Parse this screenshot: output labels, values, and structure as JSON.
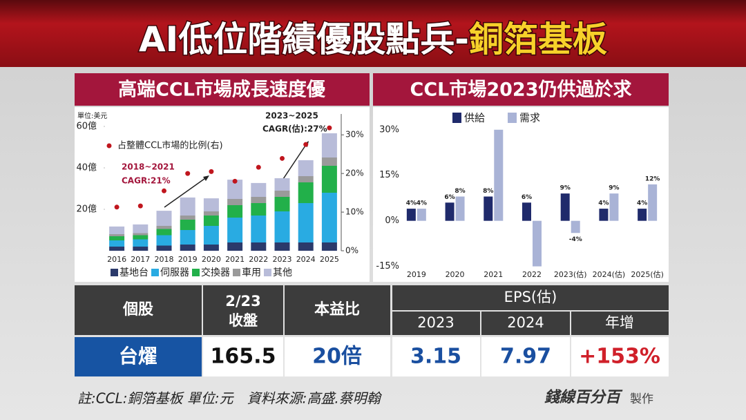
{
  "header": {
    "title_main": "AI低位階績優股點兵-",
    "title_highlight": "銅箔基板"
  },
  "chart_data": [
    {
      "type": "bar",
      "stacked": true,
      "title": "高端CCL市場成長速度優",
      "y_label": "單位:美元",
      "categories": [
        "2016",
        "2017",
        "2018",
        "2019",
        "2020",
        "2021",
        "2022",
        "2023",
        "2024",
        "2025"
      ],
      "series": [
        {
          "name": "基地台",
          "color": "#2b3a6b",
          "values": [
            2,
            2,
            2.5,
            3,
            3,
            4,
            4,
            4,
            4,
            4
          ]
        },
        {
          "name": "伺服器",
          "color": "#29abe2",
          "values": [
            3,
            3.5,
            5,
            7,
            9,
            12,
            13,
            15,
            19,
            24
          ]
        },
        {
          "name": "交換器",
          "color": "#22b04a",
          "values": [
            2,
            2,
            3,
            5,
            5,
            6,
            6,
            7,
            10,
            13
          ]
        },
        {
          "name": "車用",
          "color": "#9a9a9a",
          "values": [
            1,
            1,
            1.5,
            2,
            2,
            3,
            3,
            3,
            3,
            4
          ]
        },
        {
          "name": "其他",
          "color": "#b8bcd9",
          "values": [
            3.7,
            4.2,
            7.3,
            8.7,
            6.3,
            9.3,
            6.7,
            6,
            7.7,
            11.7
          ]
        },
        {
          "name": "占整體CCL市場的比例(右)",
          "color": "#c0161e",
          "axis": "y2",
          "mark": "dot",
          "values": [
            11.3,
            11.6,
            15.5,
            20,
            20.5,
            18,
            21.6,
            23.9,
            27.5,
            31.8
          ]
        }
      ],
      "ylim": [
        0,
        66
      ],
      "yticks": [
        {
          "value": 20,
          "label": "20億"
        },
        {
          "value": 40,
          "label": "40億"
        },
        {
          "value": 60,
          "label": "60億"
        }
      ],
      "y2lim": [
        0,
        35.4
      ],
      "y2ticks": [
        {
          "value": 0,
          "label": "0%"
        },
        {
          "value": 10,
          "label": "10%"
        },
        {
          "value": 20,
          "label": "20%"
        },
        {
          "value": 30,
          "label": "30%"
        }
      ],
      "annotations": [
        "2023~2025",
        "CAGR(估):27%",
        "2018~2021",
        "CAGR:21%"
      ]
    },
    {
      "type": "bar",
      "stacked": false,
      "title": "CCL市場2023仍供過於求",
      "categories": [
        "2019",
        "2020",
        "2021",
        "2022",
        "2023(估)",
        "2024(估)",
        "2025(估)"
      ],
      "series": [
        {
          "name": "供給",
          "color": "#1f2a6b",
          "values": [
            4,
            6,
            8,
            6,
            9,
            4,
            4
          ],
          "value_labels": [
            "4%",
            "6%",
            "8%",
            "6%",
            "9%",
            "4%",
            "4%"
          ]
        },
        {
          "name": "需求",
          "color": "#a9b3d6",
          "values": [
            4,
            8,
            30,
            -15,
            -4,
            9,
            12
          ],
          "value_labels": [
            "4%",
            "8%",
            null,
            null,
            "-4%",
            "9%",
            "12%"
          ]
        }
      ],
      "ylim": [
        -16,
        32
      ],
      "yticks": [
        {
          "value": -15,
          "label": "-15%"
        },
        {
          "value": 0,
          "label": "0%"
        },
        {
          "value": 15,
          "label": "15%"
        },
        {
          "value": 30,
          "label": "30%"
        }
      ]
    }
  ],
  "table": {
    "stock_header": "個股",
    "close_header": [
      "2/23",
      "收盤"
    ],
    "pe_header": "本益比",
    "eps_group": "EPS(估)",
    "eps_columns": [
      "2023",
      "2024",
      "年增"
    ],
    "rows": [
      [
        "台燿",
        "165.5",
        "20倍",
        "3.15",
        "7.97",
        "+153%"
      ]
    ]
  },
  "footer": {
    "note": "註:CCL:銅箔基板 單位:元　資料來源:高盛.蔡明翰",
    "logo": "錢線百分百",
    "logo_suffix": "製作"
  }
}
